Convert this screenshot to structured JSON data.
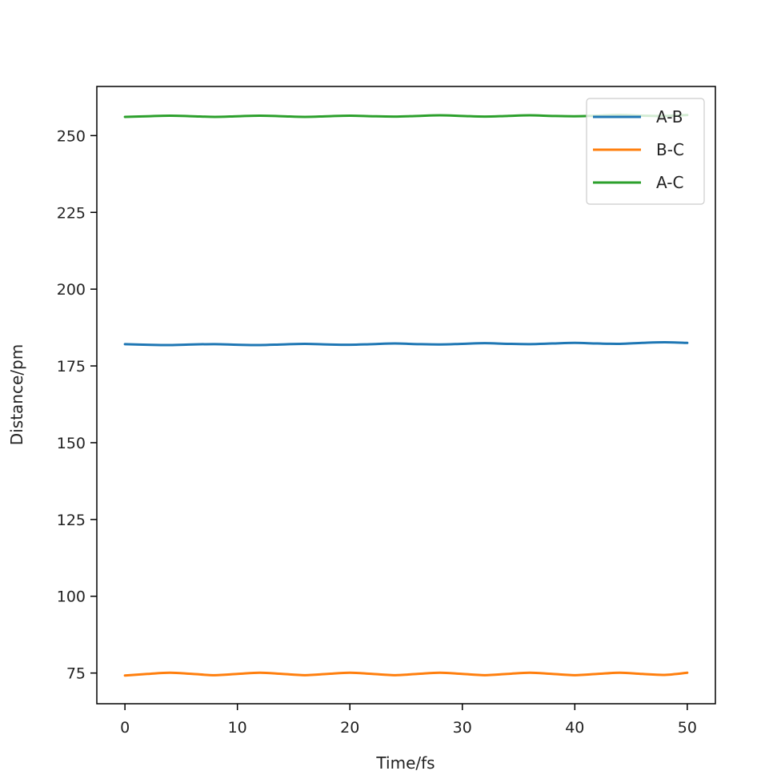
{
  "chart_data": {
    "type": "line",
    "title": "",
    "xlabel": "Time/fs",
    "ylabel": "Distance/pm",
    "xlim": [
      -2.5,
      52.5
    ],
    "ylim": [
      65,
      266
    ],
    "xticks": [
      0,
      10,
      20,
      30,
      40,
      50
    ],
    "yticks": [
      75,
      100,
      125,
      150,
      175,
      200,
      225,
      250
    ],
    "grid": false,
    "legend_position": "top-right",
    "x": [
      0,
      2,
      4,
      6,
      8,
      10,
      12,
      14,
      16,
      18,
      20,
      22,
      24,
      26,
      28,
      30,
      32,
      34,
      36,
      38,
      40,
      42,
      44,
      46,
      48,
      50
    ],
    "series": [
      {
        "name": "A-B",
        "color": "#1f77b4",
        "values": [
          182.1,
          181.9,
          181.8,
          182.0,
          182.1,
          181.9,
          181.8,
          182.0,
          182.2,
          182.0,
          181.9,
          182.1,
          182.3,
          182.1,
          182.0,
          182.2,
          182.4,
          182.2,
          182.1,
          182.3,
          182.5,
          182.3,
          182.2,
          182.5,
          182.7,
          182.5
        ]
      },
      {
        "name": "B-C",
        "color": "#ff7f0e",
        "values": [
          74.2,
          74.7,
          75.1,
          74.7,
          74.3,
          74.7,
          75.1,
          74.7,
          74.3,
          74.7,
          75.1,
          74.7,
          74.3,
          74.7,
          75.1,
          74.7,
          74.3,
          74.7,
          75.1,
          74.7,
          74.3,
          74.7,
          75.1,
          74.7,
          74.4,
          75.1
        ]
      },
      {
        "name": "A-C",
        "color": "#2ca02c",
        "values": [
          256.1,
          256.3,
          256.5,
          256.3,
          256.1,
          256.3,
          256.5,
          256.3,
          256.1,
          256.3,
          256.5,
          256.3,
          256.2,
          256.4,
          256.6,
          256.4,
          256.2,
          256.4,
          256.6,
          256.4,
          256.3,
          256.5,
          256.7,
          256.5,
          256.4,
          256.7
        ]
      }
    ]
  }
}
